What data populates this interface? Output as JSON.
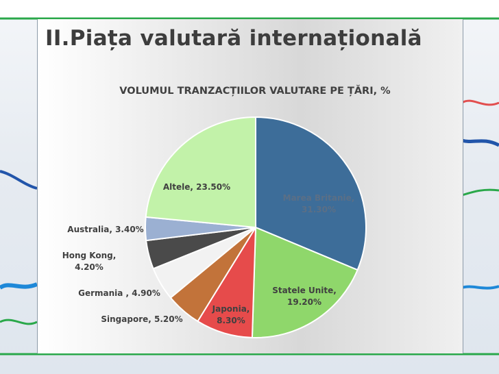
{
  "slide": {
    "title": "II.Piața valutară internațională"
  },
  "chart_data": {
    "type": "pie",
    "title": "VOLUMUL TRANZACȚIILOR VALUTARE PE ȚĂRI, %",
    "slices": [
      {
        "label": "Marea Britanie,",
        "value_text": "31.30%",
        "value": 31.3,
        "color": "#3d6d99"
      },
      {
        "label": "Statele Unite,",
        "value_text": "19.20%",
        "value": 19.2,
        "color": "#8fd76b"
      },
      {
        "label": "Japonia,",
        "value_text": "8.30%",
        "value": 8.3,
        "color": "#e64b4b"
      },
      {
        "label": "Singapore, 5.20%",
        "value_text": "",
        "value": 5.2,
        "color": "#c2733a"
      },
      {
        "label": "Germania , 4.90%",
        "value_text": "",
        "value": 4.9,
        "color": "#f2f2f2"
      },
      {
        "label": "Hong Kong,",
        "value_text": "4.20%",
        "value": 4.2,
        "color": "#4a4a4a"
      },
      {
        "label": "Australia, 3.40%",
        "value_text": "",
        "value": 3.4,
        "color": "#9bb0d2"
      },
      {
        "label": "Altele, 23.50%",
        "value_text": "",
        "value": 23.5,
        "color": "#c2f2a9"
      }
    ]
  }
}
